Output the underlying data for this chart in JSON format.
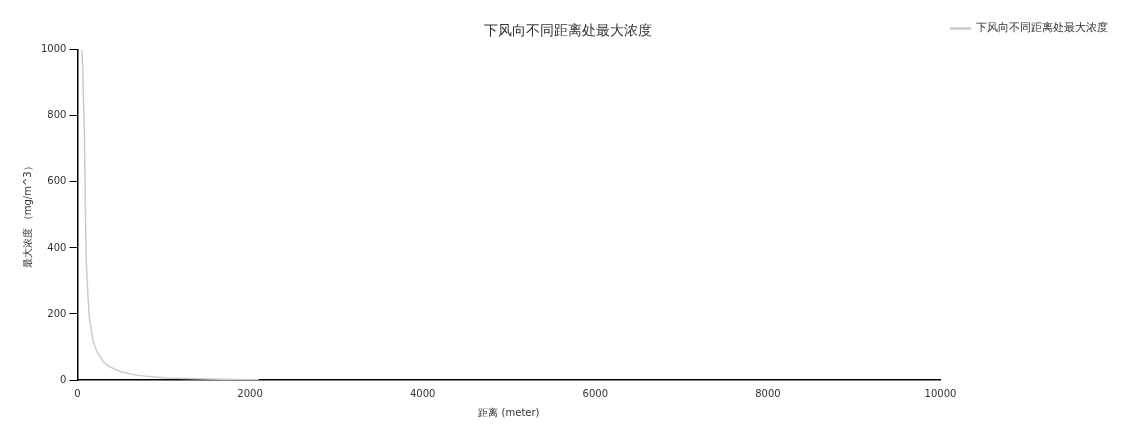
{
  "chart_data": {
    "type": "line",
    "title": "下风向不同距离处最大浓度",
    "xlabel": "距离 (meter)",
    "ylabel": "最大浓度 （mg/m^3）",
    "x": [
      50,
      60,
      80,
      100,
      120,
      140,
      180,
      220,
      300,
      373,
      500,
      640,
      800,
      1037,
      1500,
      2000,
      2100
    ],
    "series": [
      {
        "name": "下风向不同距离处最大浓度",
        "color": "#cccccc",
        "values": [
          1000,
          950,
          756,
          375,
          260,
          183,
          120,
          89,
          55,
          40,
          25,
          17,
          11,
          6,
          3,
          1,
          1
        ]
      }
    ],
    "xlim": [
      0,
      10000
    ],
    "xticks": [
      0,
      2000,
      4000,
      6000,
      8000,
      10000
    ],
    "ylim": [
      0,
      1000
    ],
    "yticks": [
      0,
      200,
      400,
      600,
      800,
      1000
    ],
    "grid": false,
    "legend": "top right",
    "marker": "none",
    "line_style": "solid"
  }
}
